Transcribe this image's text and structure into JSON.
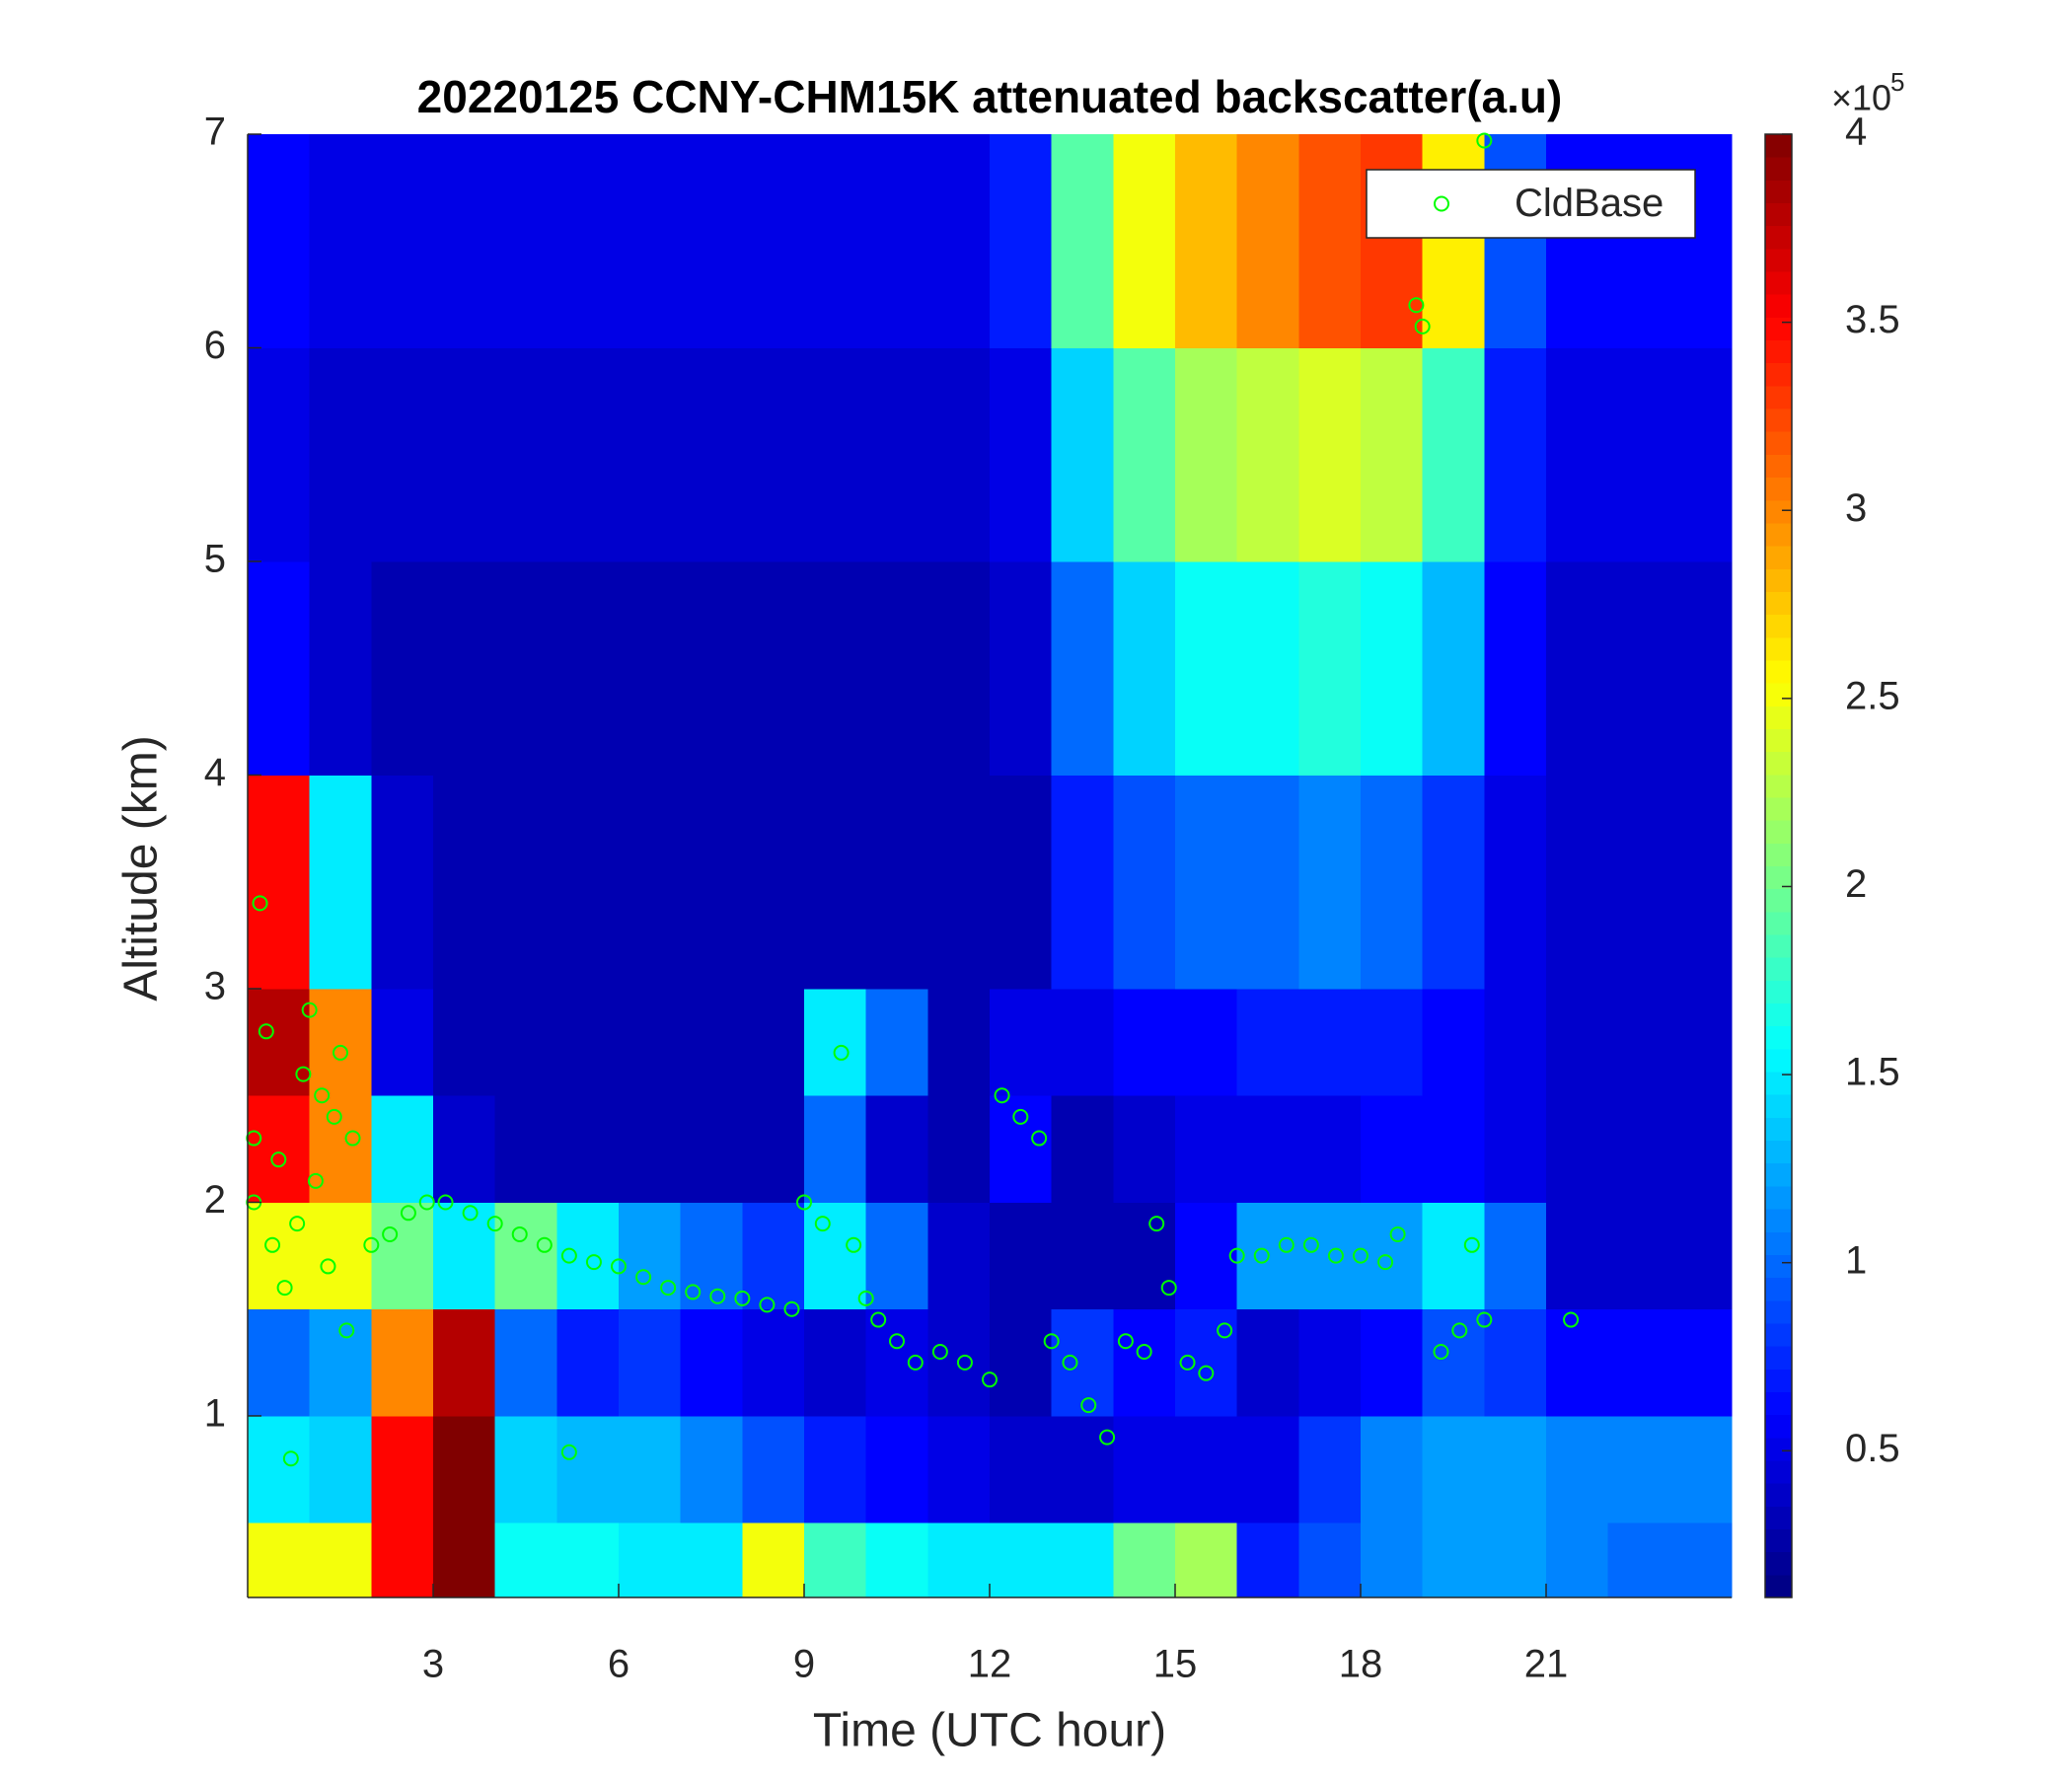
{
  "chart_data": {
    "type": "heatmap",
    "title": "20220125 CCNY-CHM15K attenuated backscatter(a.u)",
    "x_label": "Time (UTC hour)",
    "y_label": "Altitude (km)",
    "xlim": [
      0,
      24
    ],
    "ylim": [
      0.15,
      7
    ],
    "xticks": [
      3,
      6,
      9,
      12,
      15,
      18,
      21
    ],
    "yticks": [
      1,
      2,
      3,
      4,
      5,
      6,
      7
    ],
    "colormap": "jet",
    "clim": [
      0.11,
      4
    ],
    "colorbar_ticks": [
      0.5,
      1,
      1.5,
      2,
      2.5,
      3,
      3.5,
      4
    ],
    "colorbar_multiplier": "×10",
    "colorbar_exponent": "5",
    "x_edges": [
      0,
      1,
      2,
      3,
      4,
      5,
      6,
      7,
      8,
      9,
      10,
      11,
      12,
      13,
      14,
      15,
      16,
      17,
      18,
      19,
      20,
      21,
      22,
      23,
      24
    ],
    "y_edges": [
      0.15,
      0.5,
      1,
      1.5,
      2,
      2.5,
      3,
      4,
      5,
      6,
      7
    ],
    "z": [
      [
        2.5,
        2.5,
        3.5,
        4,
        1.6,
        1.6,
        1.5,
        1.5,
        2.5,
        1.8,
        1.6,
        1.5,
        1.5,
        1.5,
        2.0,
        2.2,
        0.7,
        0.9,
        1.1,
        1.2,
        1.2,
        1.1,
        1.0,
        1.0
      ],
      [
        1.5,
        1.4,
        3.5,
        4,
        1.4,
        1.3,
        1.3,
        1.1,
        0.9,
        0.7,
        0.6,
        0.5,
        0.4,
        0.4,
        0.5,
        0.5,
        0.5,
        0.8,
        1.1,
        1.2,
        1.2,
        1.1,
        1.1,
        1.1
      ],
      [
        1.0,
        1.2,
        3.0,
        3.8,
        1.0,
        0.7,
        0.8,
        0.6,
        0.5,
        0.4,
        0.5,
        0.4,
        0.3,
        0.8,
        0.6,
        0.7,
        0.4,
        0.5,
        0.6,
        0.9,
        0.8,
        0.6,
        0.6,
        0.6
      ],
      [
        2.5,
        2.5,
        2.0,
        1.5,
        2.0,
        1.5,
        1.2,
        1.0,
        0.8,
        1.5,
        1.0,
        0.4,
        0.3,
        0.3,
        0.3,
        0.6,
        1.2,
        1.2,
        1.2,
        1.5,
        1.0,
        0.4,
        0.4,
        0.4
      ],
      [
        3.5,
        3.0,
        1.5,
        0.4,
        0.3,
        0.3,
        0.3,
        0.3,
        0.3,
        1.0,
        0.4,
        0.3,
        0.6,
        0.3,
        0.4,
        0.5,
        0.5,
        0.5,
        0.6,
        0.6,
        0.5,
        0.4,
        0.4,
        0.4
      ],
      [
        3.8,
        3.0,
        0.5,
        0.3,
        0.3,
        0.3,
        0.3,
        0.3,
        0.3,
        1.5,
        1.0,
        0.3,
        0.5,
        0.5,
        0.6,
        0.6,
        0.7,
        0.7,
        0.7,
        0.6,
        0.5,
        0.4,
        0.4,
        0.4
      ],
      [
        3.5,
        1.5,
        0.4,
        0.3,
        0.3,
        0.3,
        0.3,
        0.3,
        0.3,
        0.3,
        0.3,
        0.3,
        0.3,
        0.7,
        0.9,
        1.0,
        1.0,
        1.1,
        1.0,
        0.8,
        0.5,
        0.4,
        0.4,
        0.4
      ],
      [
        0.6,
        0.4,
        0.3,
        0.3,
        0.3,
        0.3,
        0.3,
        0.3,
        0.3,
        0.3,
        0.3,
        0.3,
        0.4,
        1.0,
        1.4,
        1.6,
        1.6,
        1.7,
        1.6,
        1.3,
        0.6,
        0.4,
        0.4,
        0.4
      ],
      [
        0.5,
        0.4,
        0.4,
        0.4,
        0.4,
        0.4,
        0.4,
        0.4,
        0.4,
        0.4,
        0.4,
        0.4,
        0.5,
        1.4,
        1.9,
        2.2,
        2.3,
        2.4,
        2.3,
        1.8,
        0.7,
        0.5,
        0.5,
        0.5
      ],
      [
        0.6,
        0.5,
        0.5,
        0.5,
        0.5,
        0.5,
        0.5,
        0.5,
        0.5,
        0.5,
        0.5,
        0.5,
        0.7,
        1.9,
        2.5,
        2.8,
        3.0,
        3.2,
        3.3,
        2.6,
        0.9,
        0.6,
        0.6,
        0.6
      ]
    ],
    "legend_location": "northeast",
    "series": [
      {
        "name": "CldBase",
        "type": "scatter",
        "color": "#00ff00",
        "x": [
          0.1,
          0.1,
          0.2,
          0.3,
          0.4,
          0.5,
          0.6,
          0.7,
          0.8,
          0.9,
          1.0,
          1.1,
          1.2,
          1.3,
          1.4,
          1.5,
          1.6,
          1.7,
          2.0,
          2.3,
          2.6,
          2.9,
          3.2,
          3.6,
          4.0,
          4.4,
          4.8,
          5.2,
          5.6,
          6.0,
          6.4,
          6.8,
          7.2,
          7.6,
          8.0,
          8.4,
          8.8,
          9.0,
          9.3,
          9.6,
          9.8,
          10.0,
          10.2,
          10.5,
          10.8,
          11.2,
          11.6,
          12.0,
          12.2,
          12.5,
          12.8,
          13.0,
          13.3,
          13.6,
          13.9,
          14.2,
          14.5,
          14.7,
          14.9,
          15.2,
          15.5,
          15.8,
          16.0,
          16.4,
          16.8,
          17.2,
          17.6,
          18.0,
          18.4,
          18.6,
          18.9,
          19.0,
          19.3,
          19.6,
          19.8,
          20.0,
          20.0,
          21.4,
          5.2
        ],
        "y": [
          2.0,
          2.3,
          3.4,
          2.8,
          1.8,
          2.2,
          1.6,
          0.8,
          1.9,
          2.6,
          2.9,
          2.1,
          2.5,
          1.7,
          2.4,
          2.7,
          1.4,
          2.3,
          1.8,
          1.85,
          1.95,
          2.0,
          2.0,
          1.95,
          1.9,
          1.85,
          1.8,
          1.75,
          1.72,
          1.7,
          1.65,
          1.6,
          1.58,
          1.56,
          1.55,
          1.52,
          1.5,
          2.0,
          1.9,
          2.7,
          1.8,
          1.55,
          1.45,
          1.35,
          1.25,
          1.3,
          1.25,
          1.17,
          2.5,
          2.4,
          2.3,
          1.35,
          1.25,
          1.05,
          0.9,
          1.35,
          1.3,
          1.9,
          1.6,
          1.25,
          1.2,
          1.4,
          1.75,
          1.75,
          1.8,
          1.8,
          1.75,
          1.75,
          1.72,
          1.85,
          6.2,
          6.1,
          1.3,
          1.4,
          1.8,
          1.45,
          6.97,
          1.45,
          0.83
        ]
      }
    ]
  }
}
